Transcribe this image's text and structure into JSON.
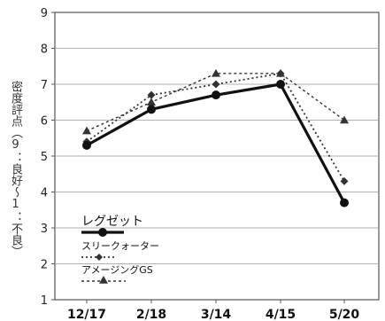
{
  "chart_data": {
    "type": "line",
    "ylabel": "密度評点（9：良好～1：不良）",
    "xlabel": "",
    "title": "",
    "categories": [
      "12/17",
      "2/18",
      "3/14",
      "4/15",
      "5/20"
    ],
    "ylim": [
      1,
      9
    ],
    "yticks": [
      1,
      2,
      3,
      4,
      5,
      6,
      7,
      8,
      9
    ],
    "grid": true,
    "legend_position": "bottom-left",
    "series": [
      {
        "name": "レグゼット",
        "values": [
          5.3,
          6.3,
          6.7,
          7.0,
          3.7
        ],
        "marker": "circle",
        "line": "solid",
        "color": "#111111"
      },
      {
        "name": "スリークォーター",
        "values": [
          5.4,
          6.7,
          7.0,
          7.3,
          4.3
        ],
        "marker": "diamond",
        "line": "dotted",
        "color": "#333333"
      },
      {
        "name": "アメージングGS",
        "values": [
          5.7,
          6.5,
          7.3,
          7.3,
          6.0
        ],
        "marker": "triangle",
        "line": "dashed",
        "color": "#333333"
      }
    ]
  }
}
